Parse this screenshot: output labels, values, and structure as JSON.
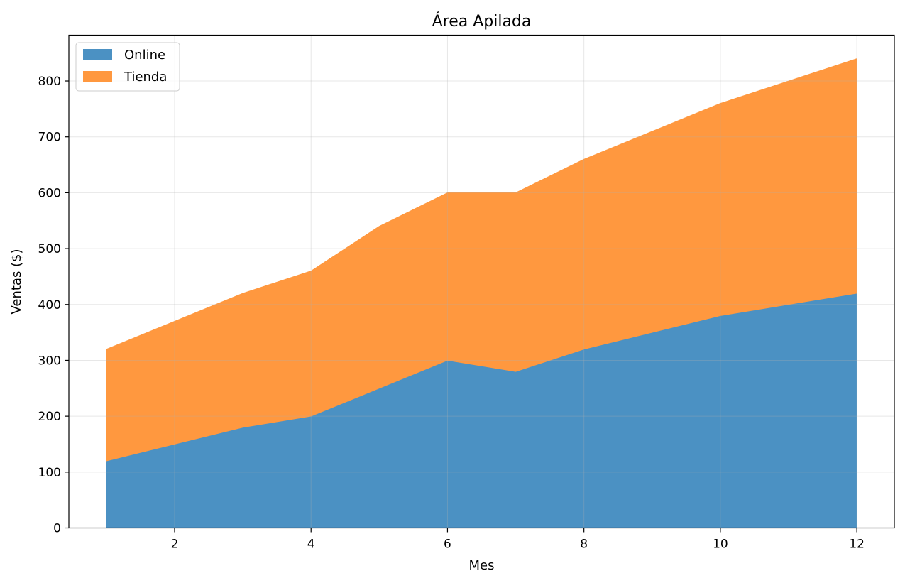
{
  "chart_data": {
    "type": "area",
    "stacked": true,
    "title": "Área Apilada",
    "xlabel": "Mes",
    "ylabel": "Ventas ($)",
    "x": [
      1,
      2,
      3,
      4,
      5,
      6,
      7,
      8,
      9,
      10,
      11,
      12
    ],
    "xlim": [
      0.45,
      12.55
    ],
    "ylim": [
      0,
      882
    ],
    "xticks": [
      2,
      4,
      6,
      8,
      10,
      12
    ],
    "yticks": [
      0,
      100,
      200,
      300,
      400,
      500,
      600,
      700,
      800
    ],
    "grid": true,
    "legend": "top-left",
    "series": [
      {
        "name": "Online",
        "color": "#4b91c3",
        "values": [
          120,
          150,
          180,
          200,
          250,
          300,
          280,
          320,
          350,
          380,
          400,
          420
        ]
      },
      {
        "name": "Tienda",
        "color": "#ff983f",
        "values": [
          200,
          220,
          240,
          260,
          290,
          300,
          320,
          340,
          360,
          380,
          400,
          420
        ]
      }
    ]
  }
}
